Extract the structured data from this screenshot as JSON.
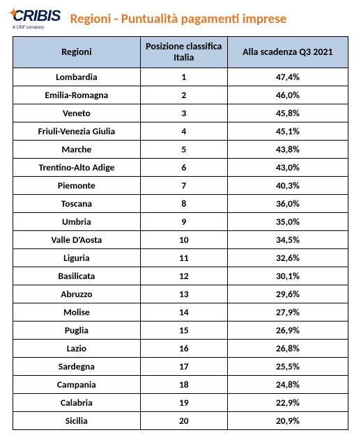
{
  "brand": {
    "name": "CRIBIS",
    "tagline": "A CRIF company"
  },
  "title": "Regioni - Puntualità pagamenti imprese",
  "colors": {
    "title_color": "#e07a2a",
    "header_bg": "#b8cce4",
    "border": "#000000",
    "text": "#000000",
    "logo_primary": "#0a1e4a",
    "logo_accent": "#e07a2a",
    "background": "#ffffff"
  },
  "table": {
    "type": "table",
    "columns": [
      "Regioni",
      "Posizione classifica Italia",
      "Alla scadenza Q3 2021"
    ],
    "col_widths_pct": [
      38,
      26,
      36
    ],
    "header_fontsize": 14,
    "cell_fontsize": 13.5,
    "font_weight": "bold",
    "rows": [
      {
        "region": "Lombardia",
        "rank": "1",
        "pct": "47,4%"
      },
      {
        "region": "Emilia-Romagna",
        "rank": "2",
        "pct": "46,0%"
      },
      {
        "region": "Veneto",
        "rank": "3",
        "pct": "45,8%"
      },
      {
        "region": "Friuli-Venezia Giulia",
        "rank": "4",
        "pct": "45,1%"
      },
      {
        "region": "Marche",
        "rank": "5",
        "pct": "43,8%"
      },
      {
        "region": "Trentino-Alto Adige",
        "rank": "6",
        "pct": "43,0%"
      },
      {
        "region": "Piemonte",
        "rank": "7",
        "pct": "40,3%"
      },
      {
        "region": "Toscana",
        "rank": "8",
        "pct": "36,0%"
      },
      {
        "region": "Umbria",
        "rank": "9",
        "pct": "35,0%"
      },
      {
        "region": "Valle D'Aosta",
        "rank": "10",
        "pct": "34,5%"
      },
      {
        "region": "Liguria",
        "rank": "11",
        "pct": "32,6%"
      },
      {
        "region": "Basilicata",
        "rank": "12",
        "pct": "30,1%"
      },
      {
        "region": "Abruzzo",
        "rank": "13",
        "pct": "29,6%"
      },
      {
        "region": "Molise",
        "rank": "14",
        "pct": "27,9%"
      },
      {
        "region": "Puglia",
        "rank": "15",
        "pct": "26,9%"
      },
      {
        "region": "Lazio",
        "rank": "16",
        "pct": "26,8%"
      },
      {
        "region": "Sardegna",
        "rank": "17",
        "pct": "25,5%"
      },
      {
        "region": "Campania",
        "rank": "18",
        "pct": "24,8%"
      },
      {
        "region": "Calabria",
        "rank": "19",
        "pct": "22,9%"
      },
      {
        "region": "Sicilia",
        "rank": "20",
        "pct": "20,9%"
      }
    ]
  }
}
